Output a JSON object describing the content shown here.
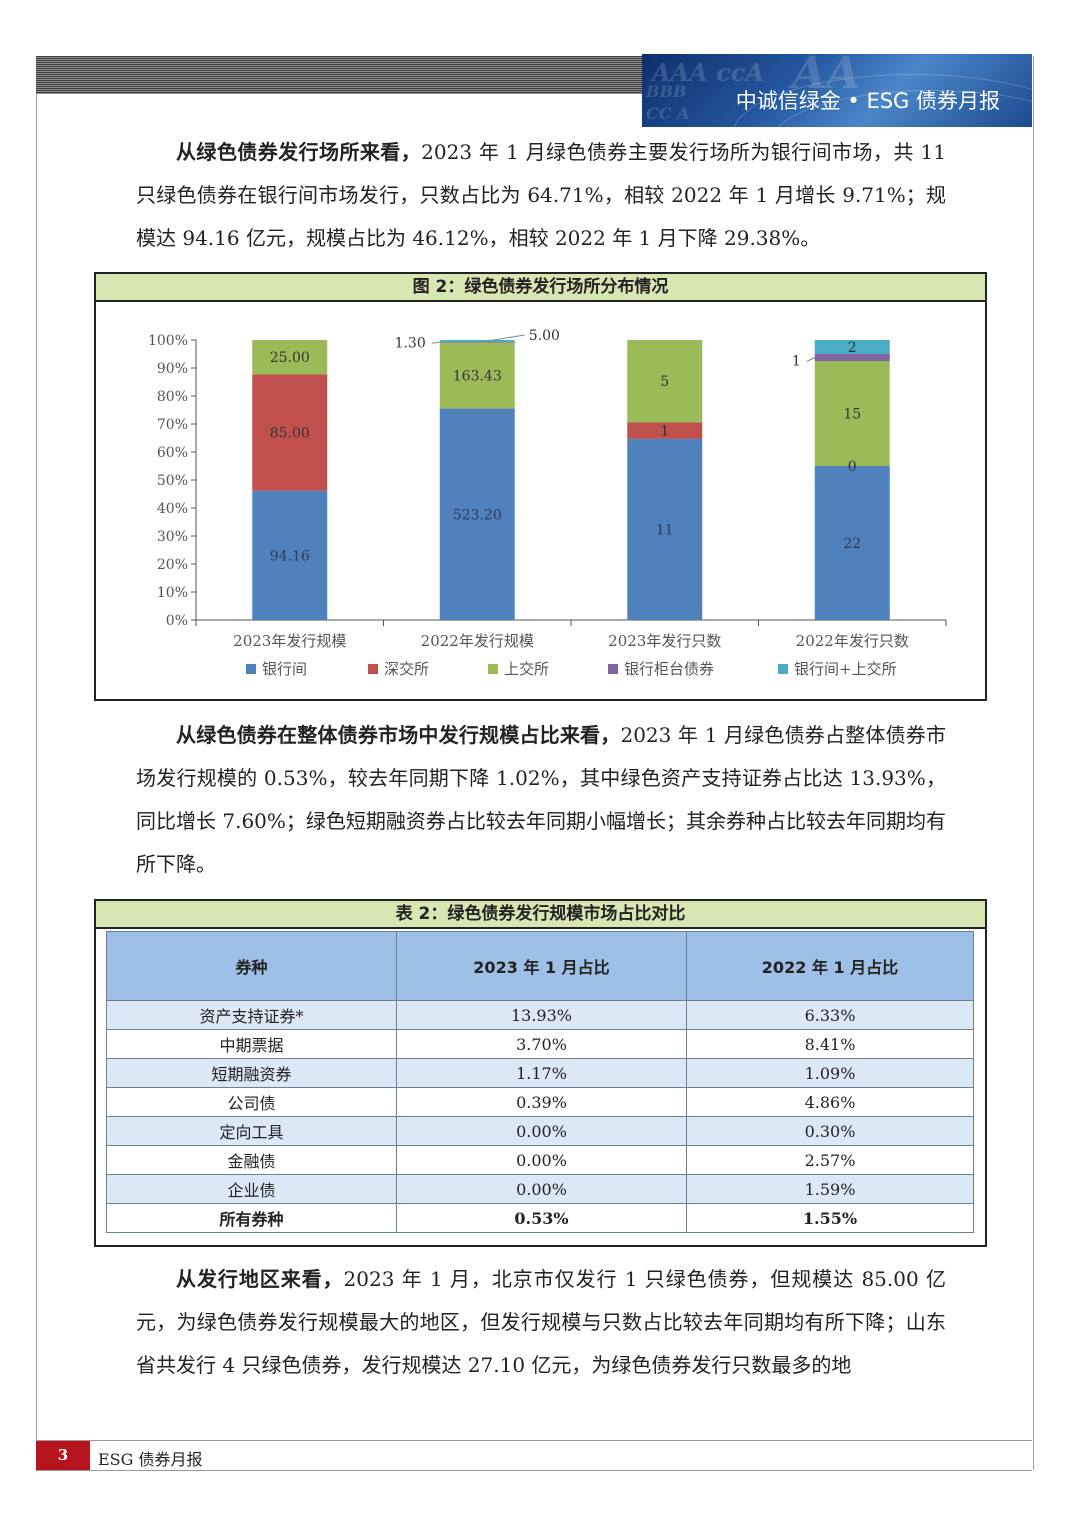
{
  "header": {
    "title": "中诚信绿金 • ESG 债券月报"
  },
  "paragraphs": {
    "p1_lead": "从绿色债券发行场所来看，",
    "p1_body": "2023 年 1 月绿色债券主要发行场所为银行间市场，共 11 只绿色债券在银行间市场发行，只数占比为 64.71%，相较 2022 年 1 月增长 9.71%；规模达 94.16 亿元，规模占比为 46.12%，相较 2022 年 1 月下降 29.38%。",
    "p2_lead": "从绿色债券在整体债券市场中发行规模占比来看，",
    "p2_body": "2023 年 1 月绿色债券占整体债券市场发行规模的 0.53%，较去年同期下降 1.02%，其中绿色资产支持证券占比达 13.93%，同比增长 7.60%；绿色短期融资券占比较去年同期小幅增长；其余券种占比较去年同期均有所下降。",
    "p3_lead": "从发行地区来看，",
    "p3_body": "2023 年 1 月，北京市仅发行 1 只绿色债券，但规模达 85.00 亿元，为绿色债券发行规模最大的地区，但发行规模与只数占比较去年同期均有所下降；山东省共发行 4 只绿色债券，发行规模达 27.10 亿元，为绿色债券发行只数最多的地"
  },
  "figure": {
    "title": "图 2：绿色债券发行场所分布情况"
  },
  "chart_data": {
    "type": "bar",
    "stacked": true,
    "normalized": true,
    "title": "图 2：绿色债券发行场所分布情况",
    "categories": [
      "2023年发行规模",
      "2022年发行规模",
      "2023年发行只数",
      "2022年发行只数"
    ],
    "y_ticks": [
      "0%",
      "10%",
      "20%",
      "30%",
      "40%",
      "50%",
      "60%",
      "70%",
      "80%",
      "90%",
      "100%"
    ],
    "ylim": [
      0,
      100
    ],
    "series": [
      {
        "name": "银行间",
        "color": "#4f81bd",
        "values": [
          94.16,
          523.2,
          11,
          22
        ],
        "labels": [
          "94.16",
          "523.20",
          "11",
          "22"
        ]
      },
      {
        "name": "深交所",
        "color": "#c0504d",
        "values": [
          85.0,
          0,
          1,
          0
        ],
        "labels": [
          "85.00",
          "",
          "1",
          "0"
        ]
      },
      {
        "name": "上交所",
        "color": "#9bbb59",
        "values": [
          25.0,
          163.43,
          5,
          15
        ],
        "labels": [
          "25.00",
          "163.43",
          "5",
          "15"
        ]
      },
      {
        "name": "银行柜台债券",
        "color": "#8064a2",
        "values": [
          0,
          1.3,
          0,
          1
        ],
        "labels": [
          "",
          "1.30",
          "",
          "1"
        ]
      },
      {
        "name": "银行间+上交所",
        "color": "#4bacc6",
        "values": [
          0,
          5.0,
          0,
          2
        ],
        "labels": [
          "",
          "5.00",
          "",
          "2"
        ]
      }
    ],
    "legend_position": "bottom"
  },
  "table": {
    "title": "表 2：绿色债券发行规模市场占比对比",
    "headers": [
      "券种",
      "2023 年 1 月占比",
      "2022 年 1 月占比"
    ],
    "rows": [
      [
        "资产支持证券*",
        "13.93%",
        "6.33%"
      ],
      [
        "中期票据",
        "3.70%",
        "8.41%"
      ],
      [
        "短期融资券",
        "1.17%",
        "1.09%"
      ],
      [
        "公司债",
        "0.39%",
        "4.86%"
      ],
      [
        "定向工具",
        "0.00%",
        "0.30%"
      ],
      [
        "金融债",
        "0.00%",
        "2.57%"
      ],
      [
        "企业债",
        "0.00%",
        "1.59%"
      ],
      [
        "所有券种",
        "0.53%",
        "1.55%"
      ]
    ]
  },
  "footer": {
    "page_number": "3",
    "label": "ESG 债券月报"
  }
}
